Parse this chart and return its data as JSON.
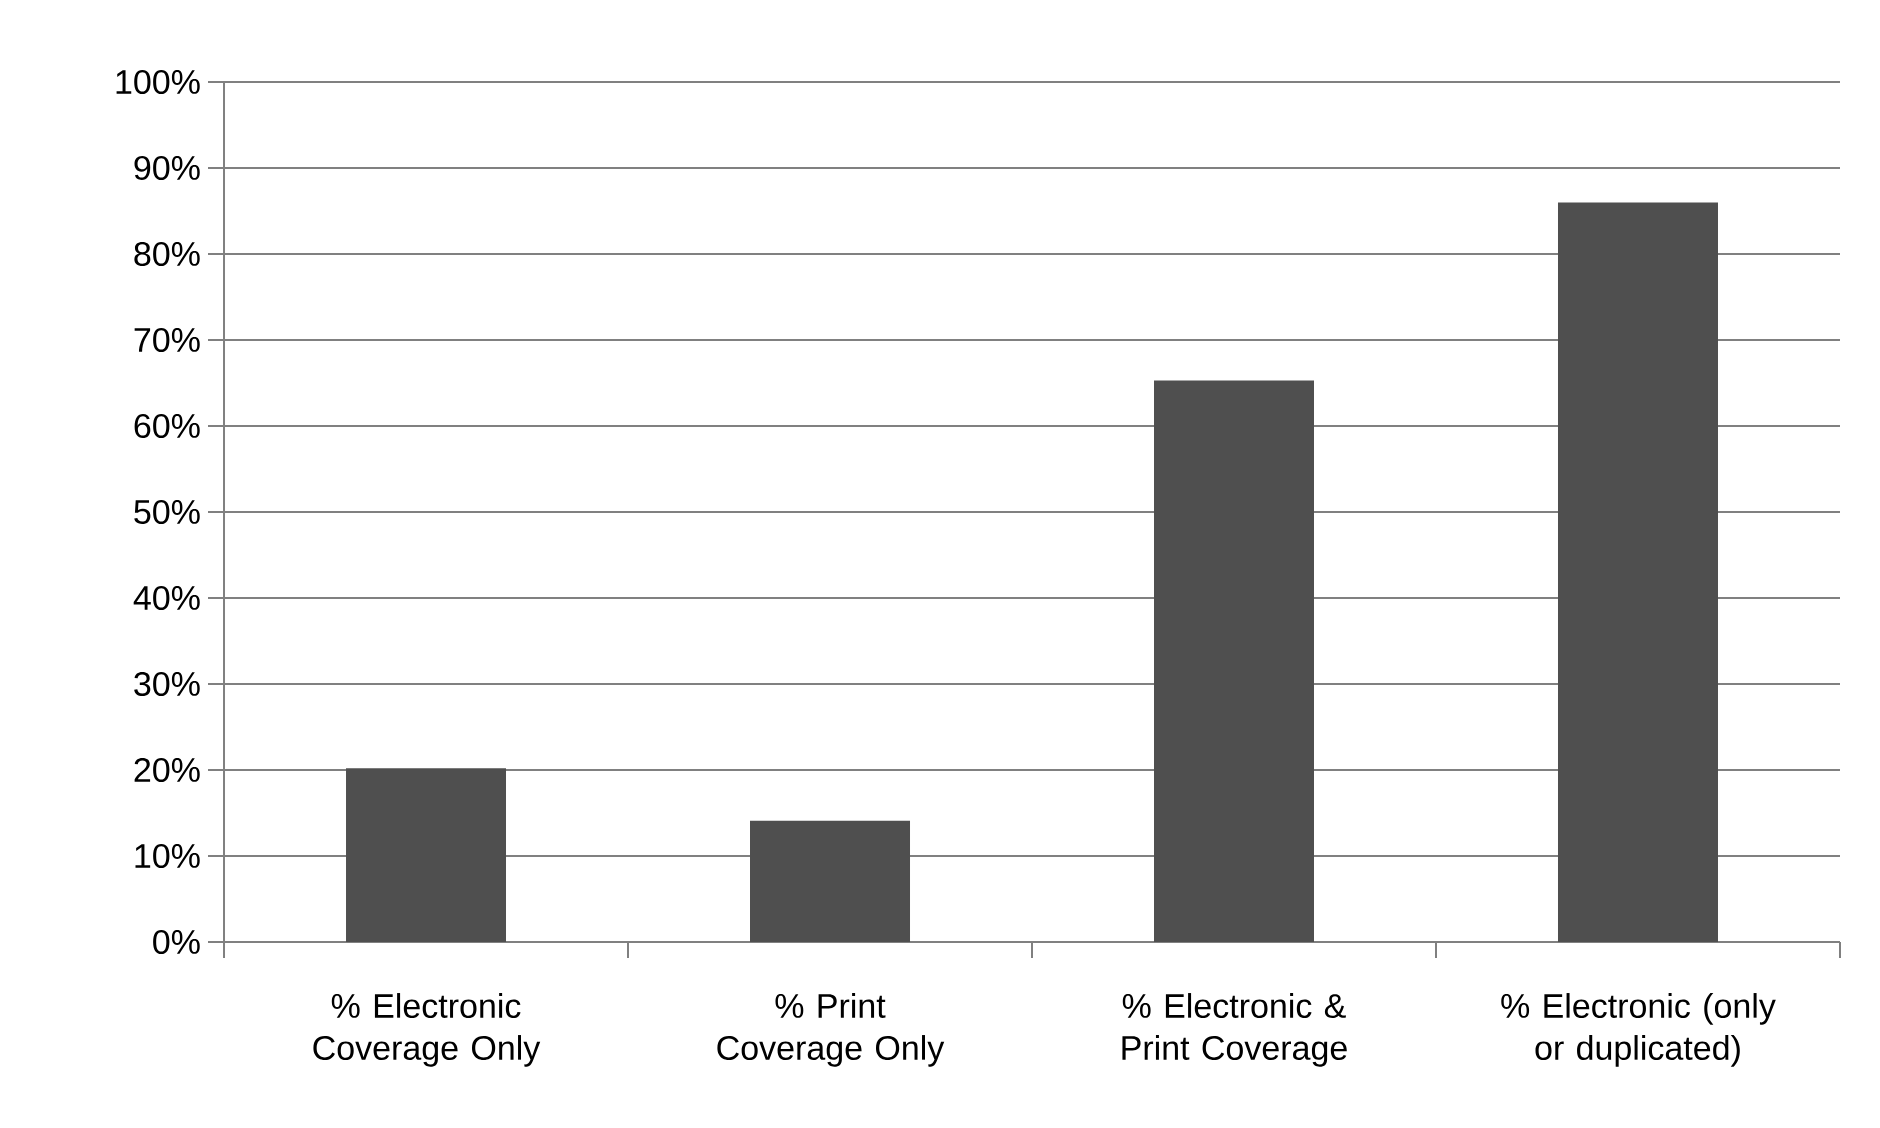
{
  "chart_data": {
    "type": "bar",
    "categories": [
      "% Electronic Coverage Only",
      "% Print Coverage Only",
      "% Electronic & Print Coverage",
      "% Electronic (only or duplicated)"
    ],
    "values": [
      20.2,
      14.1,
      65.3,
      86.0
    ],
    "color": "#4f4f4f",
    "ylim": [
      0,
      100
    ],
    "yticks": [
      {
        "value": 0,
        "label": "0%"
      },
      {
        "value": 10,
        "label": "10%"
      },
      {
        "value": 20,
        "label": "20%"
      },
      {
        "value": 30,
        "label": "30%"
      },
      {
        "value": 40,
        "label": "40%"
      },
      {
        "value": 50,
        "label": "50%"
      },
      {
        "value": 60,
        "label": "60%"
      },
      {
        "value": 70,
        "label": "70%"
      },
      {
        "value": 80,
        "label": "80%"
      },
      {
        "value": 90,
        "label": "90%"
      },
      {
        "value": 100,
        "label": "100%"
      }
    ],
    "grid": "y"
  }
}
